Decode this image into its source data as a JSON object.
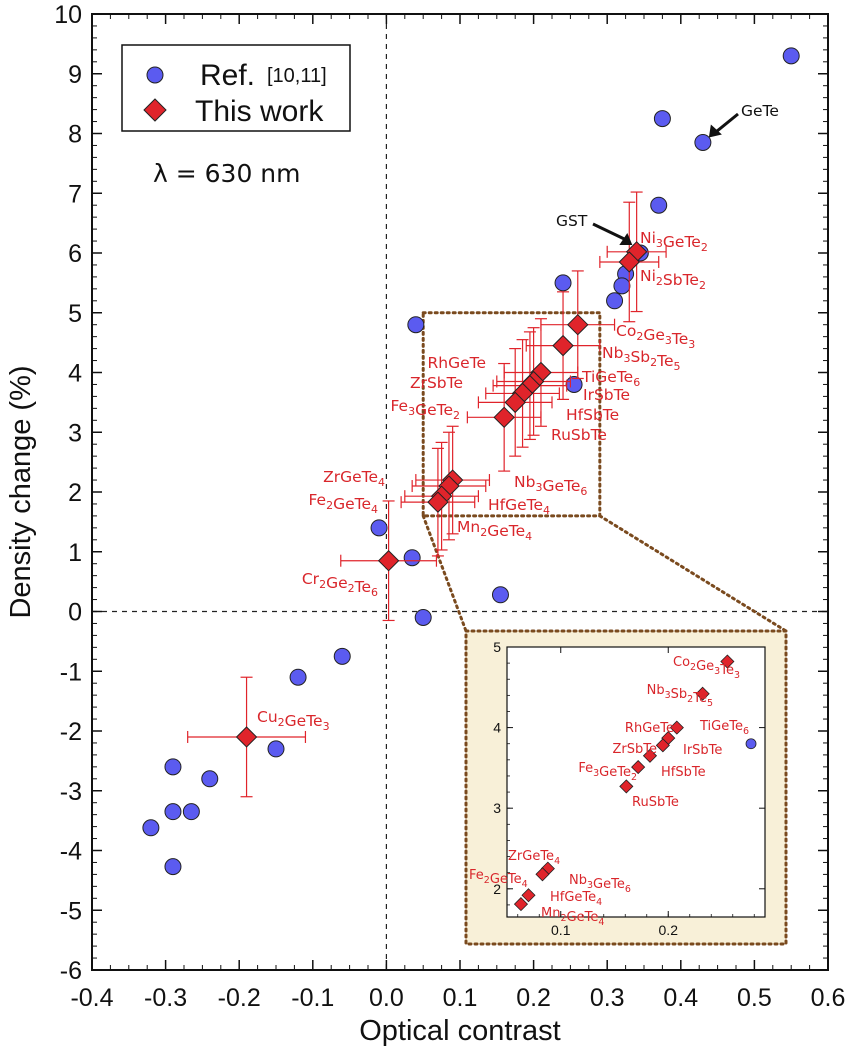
{
  "chart_data": {
    "type": "scatter",
    "xlabel": "Optical contrast",
    "ylabel": "Density change (%)",
    "xlim": [
      -0.4,
      0.6
    ],
    "ylim": [
      -6,
      10
    ],
    "x_ticks": [
      "-0.4",
      "-0.3",
      "-0.2",
      "-0.1",
      "0.0",
      "0.1",
      "0.2",
      "0.3",
      "0.4",
      "0.5",
      "0.6"
    ],
    "y_ticks": [
      "-6",
      "-5",
      "-4",
      "-3",
      "-2",
      "-1",
      "0",
      "1",
      "2",
      "3",
      "4",
      "5",
      "6",
      "7",
      "8",
      "9",
      "10"
    ],
    "annotation": "λ = 630 nm",
    "legend": {
      "position": "top-left",
      "ref_label": "Ref.",
      "ref_citation": "[10,11]",
      "this_label": "This work"
    },
    "colors": {
      "ref": "#5b5bf0",
      "this_work": "#e0242b",
      "label": "#d9262b"
    },
    "series": [
      {
        "name": "Ref. [10,11]",
        "marker": "circle",
        "points": [
          {
            "x": 0.55,
            "y": 9.3
          },
          {
            "x": 0.43,
            "y": 7.85,
            "label": "GeTe"
          },
          {
            "x": 0.375,
            "y": 8.25
          },
          {
            "x": 0.37,
            "y": 6.8
          },
          {
            "x": 0.345,
            "y": 6.0,
            "label": "GST"
          },
          {
            "x": 0.325,
            "y": 5.65
          },
          {
            "x": 0.32,
            "y": 5.45
          },
          {
            "x": 0.31,
            "y": 5.2
          },
          {
            "x": 0.24,
            "y": 5.5
          },
          {
            "x": 0.255,
            "y": 3.8
          },
          {
            "x": 0.04,
            "y": 4.8
          },
          {
            "x": -0.01,
            "y": 1.4
          },
          {
            "x": 0.035,
            "y": 0.9
          },
          {
            "x": 0.05,
            "y": -0.1
          },
          {
            "x": 0.155,
            "y": 0.28
          },
          {
            "x": -0.06,
            "y": -0.75
          },
          {
            "x": -0.12,
            "y": -1.1
          },
          {
            "x": -0.15,
            "y": -2.3
          },
          {
            "x": -0.24,
            "y": -2.8
          },
          {
            "x": -0.29,
            "y": -2.6
          },
          {
            "x": -0.265,
            "y": -3.35
          },
          {
            "x": -0.29,
            "y": -3.35
          },
          {
            "x": -0.32,
            "y": -3.62
          },
          {
            "x": -0.29,
            "y": -4.27
          }
        ]
      },
      {
        "name": "This work",
        "marker": "diamond",
        "points": [
          {
            "label": "Ni3GeTe2",
            "x": 0.34,
            "y": 6.02,
            "xerr": 0.04,
            "yerr": 1.0
          },
          {
            "label": "Ni2SbTe2",
            "x": 0.33,
            "y": 5.85,
            "xerr": 0.04,
            "yerr": 1.0
          },
          {
            "label": "Co2Ge3Te3",
            "x": 0.26,
            "y": 4.8,
            "xerr": 0.05,
            "yerr": 0.9
          },
          {
            "label": "Nb3Sb2Te5",
            "x": 0.24,
            "y": 4.45,
            "xerr": 0.05,
            "yerr": 0.9
          },
          {
            "label": "TiGeTe6",
            "x": 0.21,
            "y": 4.0,
            "xerr": 0.05,
            "yerr": 0.9
          },
          {
            "label": "RhGeTe",
            "x": 0.2,
            "y": 3.85,
            "xerr": 0.05,
            "yerr": 0.9
          },
          {
            "label": "IrSbTe",
            "x": 0.195,
            "y": 3.78,
            "xerr": 0.05,
            "yerr": 0.9
          },
          {
            "label": "ZrSbTe",
            "x": 0.185,
            "y": 3.65,
            "xerr": 0.05,
            "yerr": 0.9
          },
          {
            "label": "HfSbTe",
            "x": 0.175,
            "y": 3.5,
            "xerr": 0.05,
            "yerr": 0.9
          },
          {
            "label": "RuSbTe",
            "x": 0.16,
            "y": 3.25,
            "xerr": 0.05,
            "yerr": 0.9
          },
          {
            "label": "Nb3GeTe6",
            "x": 0.09,
            "y": 2.2,
            "xerr": 0.05,
            "yerr": 0.9
          },
          {
            "label": "ZrGeTe4",
            "x": 0.085,
            "y": 2.1,
            "xerr": 0.05,
            "yerr": 0.9
          },
          {
            "label": "HfGeTe4",
            "x": 0.075,
            "y": 1.93,
            "xerr": 0.05,
            "yerr": 0.9
          },
          {
            "label": "Mn2GeTe4",
            "x": 0.07,
            "y": 1.83,
            "xerr": 0.05,
            "yerr": 0.9
          },
          {
            "label": "Cr2Ge2Te6",
            "x": 0.003,
            "y": 0.85,
            "xerr": 0.065,
            "yerr": 1.0
          },
          {
            "label": "Cu2GeTe3",
            "x": -0.19,
            "y": -2.1,
            "xerr": 0.08,
            "yerr": 1.0
          }
        ]
      }
    ],
    "inset": {
      "position": "bottom-right",
      "xlim": [
        0.05,
        0.29
      ],
      "ylim": [
        1.65,
        5.0
      ],
      "x_ticks": [
        "0.1",
        "0.2"
      ],
      "y_ticks": [
        "2",
        "3",
        "4",
        "5"
      ],
      "ref_point": {
        "x": 0.277,
        "y": 3.8
      },
      "points": [
        {
          "label": "Co2Ge3Te3",
          "x": 0.255,
          "y": 4.82
        },
        {
          "label": "Nb3Sb2Te5",
          "x": 0.232,
          "y": 4.42
        },
        {
          "label": "TiGeTe6",
          "x": 0.208,
          "y": 4.0
        },
        {
          "label": "RhGeTe",
          "x": 0.2,
          "y": 3.87
        },
        {
          "label": "IrSbTe",
          "x": 0.195,
          "y": 3.78
        },
        {
          "label": "ZrSbTe",
          "x": 0.183,
          "y": 3.65
        },
        {
          "label": "HfSbTe",
          "x": 0.172,
          "y": 3.51
        },
        {
          "label": "RuSbTe",
          "x": 0.161,
          "y": 3.27
        },
        {
          "label": "Nb3GeTe6",
          "x": 0.088,
          "y": 2.25
        },
        {
          "label": "ZrGeTe4",
          "x": 0.083,
          "y": 2.18
        },
        {
          "label": "HfGeTe4",
          "x": 0.07,
          "y": 1.92
        },
        {
          "label": "Mn2GeTe4",
          "x": 0.063,
          "y": 1.81
        }
      ]
    }
  }
}
